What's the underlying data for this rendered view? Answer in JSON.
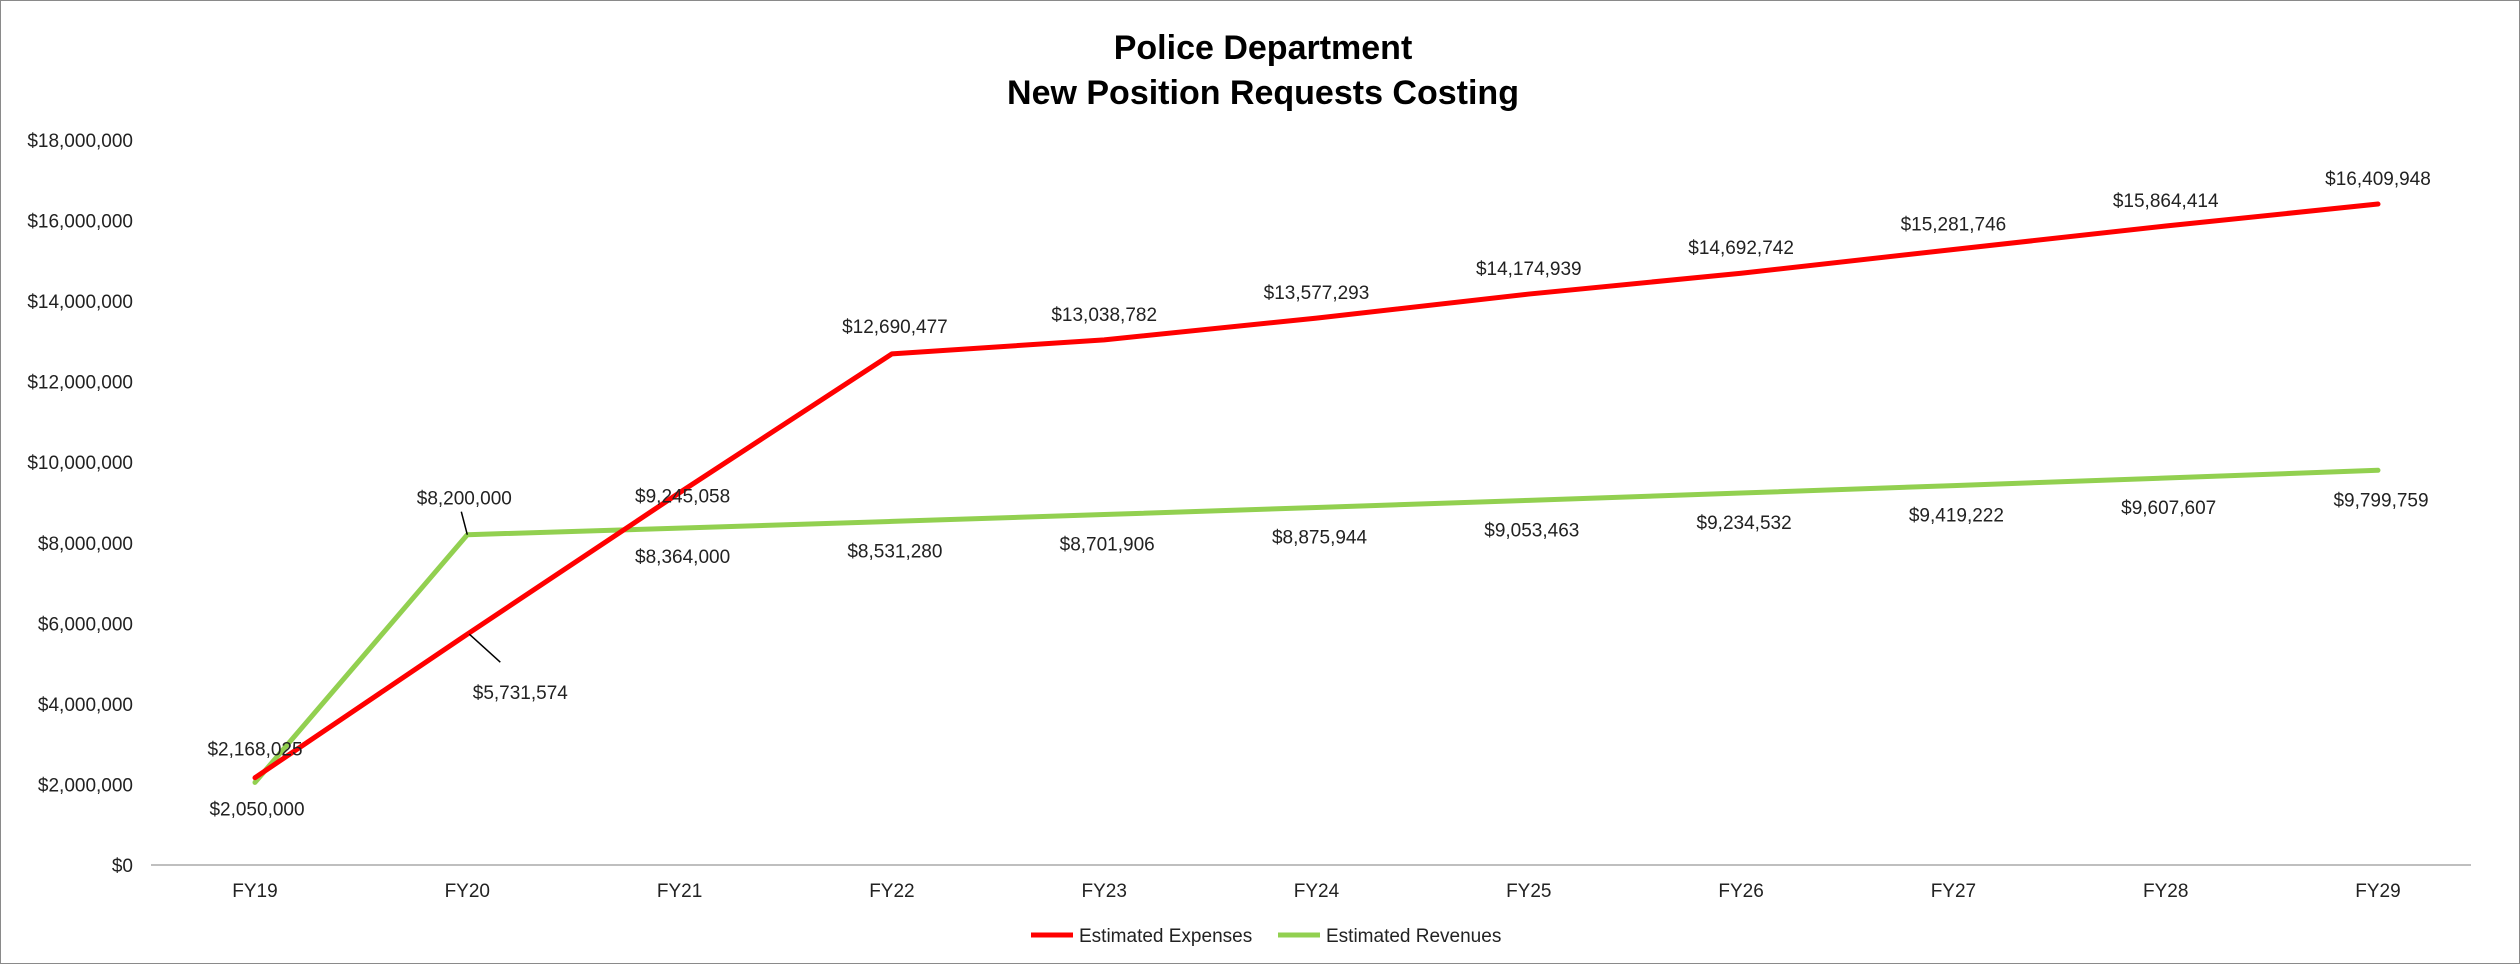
{
  "chart_data": {
    "type": "line",
    "title": [
      "Police Department",
      "New Position Requests Costing"
    ],
    "xlabel": "",
    "ylabel": "",
    "categories": [
      "FY19",
      "FY20",
      "FY21",
      "FY22",
      "FY23",
      "FY24",
      "FY25",
      "FY26",
      "FY27",
      "FY28",
      "FY29"
    ],
    "ylim": [
      0,
      18000000
    ],
    "yticks": [
      0,
      2000000,
      4000000,
      6000000,
      8000000,
      10000000,
      12000000,
      14000000,
      16000000,
      18000000
    ],
    "ytick_labels": [
      "$0",
      "$2,000,000",
      "$4,000,000",
      "$6,000,000",
      "$8,000,000",
      "$10,000,000",
      "$12,000,000",
      "$14,000,000",
      "$16,000,000",
      "$18,000,000"
    ],
    "grid": false,
    "legend": "bottom",
    "series": [
      {
        "name": "Estimated Expenses",
        "color": "#ff0000",
        "values": [
          2168025,
          5731574,
          9245058,
          12690477,
          13038782,
          13577293,
          14174939,
          14692742,
          15281746,
          15864414,
          16409948
        ],
        "labels": [
          "$2,168,025",
          "$5,731,574",
          "$9,245,058",
          "$12,690,477",
          "$13,038,782",
          "$13,577,293",
          "$14,174,939",
          "$14,692,742",
          "$15,281,746",
          "$15,864,414",
          "$16,409,948"
        ]
      },
      {
        "name": "Estimated Revenues",
        "color": "#92d050",
        "values": [
          2050000,
          8200000,
          8364000,
          8531280,
          8701906,
          8875944,
          9053463,
          9234532,
          9419222,
          9607607,
          9799759
        ],
        "labels": [
          "$2,050,000",
          "$8,200,000",
          "$8,364,000",
          "$8,531,280",
          "$8,701,906",
          "$8,875,944",
          "$9,053,463",
          "$9,234,532",
          "$9,419,222",
          "$9,607,607",
          "$9,799,759"
        ]
      }
    ]
  }
}
